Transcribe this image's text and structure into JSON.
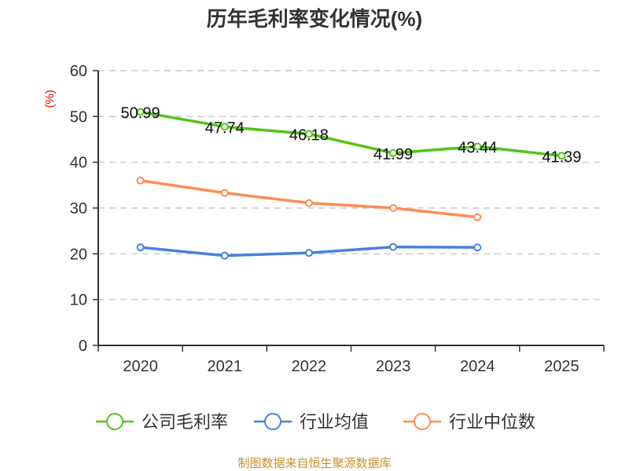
{
  "chart_data": {
    "type": "line",
    "title": "历年毛利率变化情况(%)",
    "ylabel": "(%)",
    "xlabel": "",
    "categories": [
      "2020",
      "2021",
      "2022",
      "2023",
      "2024",
      "2025"
    ],
    "ylim": [
      0,
      60
    ],
    "yticks": [
      0,
      10,
      20,
      30,
      40,
      50,
      60
    ],
    "grid": true,
    "legend_position": "bottom",
    "series": [
      {
        "name": "公司毛利率",
        "color": "#52c41a",
        "values": [
          50.99,
          47.74,
          46.18,
          41.99,
          43.44,
          41.39
        ],
        "labels": [
          "50.99",
          "47.74",
          "46.18",
          "41.99",
          "43.44",
          "41.39"
        ]
      },
      {
        "name": "行业均值",
        "color": "#4a7fe0",
        "values": [
          21.4,
          19.6,
          20.2,
          21.5,
          21.4,
          null
        ]
      },
      {
        "name": "行业中位数",
        "color": "#ff8c55",
        "values": [
          36.0,
          33.3,
          31.1,
          30.0,
          28.0,
          null
        ]
      }
    ]
  },
  "source": "制图数据来自恒生聚源数据库"
}
